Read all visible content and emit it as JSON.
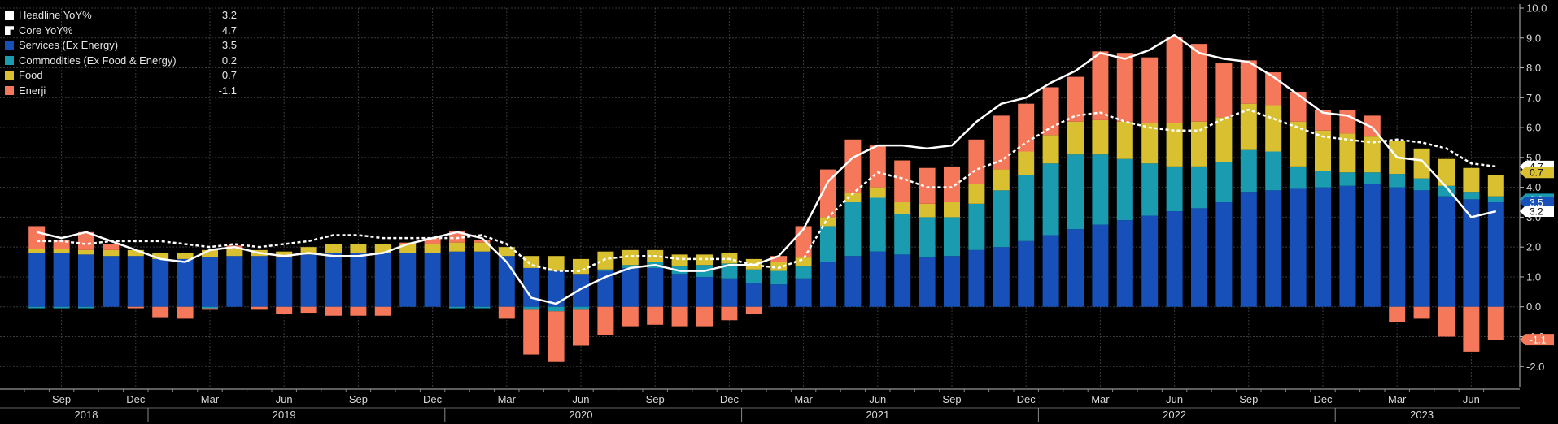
{
  "legend": [
    {
      "name": "Headline YoY%",
      "value": "3.2",
      "color": "#ffffff"
    },
    {
      "name": "Core YoY%",
      "value": "4.7",
      "color": "#ffffff"
    },
    {
      "name": "Services (Ex Energy)",
      "value": "3.5",
      "color": "#1650b8"
    },
    {
      "name": "Commodities (Ex Food & Energy)",
      "value": "0.2",
      "color": "#1b9bb0"
    },
    {
      "name": "Food",
      "value": "0.7",
      "color": "#d8c030"
    },
    {
      "name": "Enerji",
      "value": "-1.1",
      "color": "#f5785a"
    }
  ],
  "chart_data": {
    "type": "bar",
    "stacked": true,
    "x": [
      "2018-08",
      "2018-09",
      "2018-10",
      "2018-11",
      "2018-12",
      "2019-01",
      "2019-02",
      "2019-03",
      "2019-04",
      "2019-05",
      "2019-06",
      "2019-07",
      "2019-08",
      "2019-09",
      "2019-10",
      "2019-11",
      "2019-12",
      "2020-01",
      "2020-02",
      "2020-03",
      "2020-04",
      "2020-05",
      "2020-06",
      "2020-07",
      "2020-08",
      "2020-09",
      "2020-10",
      "2020-11",
      "2020-12",
      "2021-01",
      "2021-02",
      "2021-03",
      "2021-04",
      "2021-05",
      "2021-06",
      "2021-07",
      "2021-08",
      "2021-09",
      "2021-10",
      "2021-11",
      "2021-12",
      "2022-01",
      "2022-02",
      "2022-03",
      "2022-04",
      "2022-05",
      "2022-06",
      "2022-07",
      "2022-08",
      "2022-09",
      "2022-10",
      "2022-11",
      "2022-12",
      "2023-01",
      "2023-02",
      "2023-03",
      "2023-04",
      "2023-05",
      "2023-06",
      "2023-07"
    ],
    "series": [
      {
        "name": "Services (Ex Energy)",
        "color": "#1650b8",
        "values": [
          1.8,
          1.8,
          1.75,
          1.7,
          1.7,
          1.6,
          1.6,
          1.65,
          1.7,
          1.7,
          1.65,
          1.75,
          1.8,
          1.8,
          1.8,
          1.8,
          1.8,
          1.85,
          1.85,
          1.7,
          1.3,
          1.2,
          1.1,
          1.2,
          1.3,
          1.3,
          1.1,
          1.0,
          0.95,
          0.8,
          0.75,
          0.95,
          1.5,
          1.7,
          1.85,
          1.75,
          1.65,
          1.7,
          1.9,
          2.0,
          2.2,
          2.4,
          2.6,
          2.75,
          2.9,
          3.05,
          3.2,
          3.3,
          3.5,
          3.85,
          3.9,
          3.95,
          4.0,
          4.05,
          4.1,
          4.0,
          3.9,
          3.7,
          3.6,
          3.5
        ]
      },
      {
        "name": "Commodities (Ex Food & Energy)",
        "color": "#1b9bb0",
        "values": [
          -0.05,
          -0.05,
          -0.05,
          0.0,
          0.0,
          0.0,
          0.0,
          -0.05,
          0.0,
          0.0,
          0.0,
          0.0,
          0.0,
          0.0,
          0.0,
          0.0,
          0.0,
          -0.05,
          -0.05,
          0.0,
          -0.1,
          -0.15,
          -0.1,
          0.05,
          0.1,
          0.2,
          0.25,
          0.4,
          0.5,
          0.45,
          0.45,
          0.4,
          1.2,
          1.8,
          1.8,
          1.35,
          1.35,
          1.3,
          1.55,
          1.9,
          2.2,
          2.4,
          2.5,
          2.35,
          2.05,
          1.75,
          1.5,
          1.4,
          1.35,
          1.4,
          1.3,
          0.75,
          0.55,
          0.45,
          0.4,
          0.45,
          0.4,
          0.35,
          0.25,
          0.2
        ]
      },
      {
        "name": "Food",
        "color": "#d8c030",
        "values": [
          0.15,
          0.15,
          0.15,
          0.2,
          0.2,
          0.2,
          0.2,
          0.25,
          0.25,
          0.2,
          0.2,
          0.25,
          0.3,
          0.3,
          0.3,
          0.3,
          0.3,
          0.3,
          0.3,
          0.3,
          0.4,
          0.5,
          0.5,
          0.6,
          0.5,
          0.4,
          0.4,
          0.35,
          0.35,
          0.35,
          0.3,
          0.3,
          0.3,
          0.3,
          0.35,
          0.4,
          0.45,
          0.5,
          0.65,
          0.7,
          0.8,
          0.95,
          1.1,
          1.15,
          1.25,
          1.35,
          1.45,
          1.5,
          1.5,
          1.55,
          1.55,
          1.5,
          1.35,
          1.3,
          1.2,
          1.1,
          1.0,
          0.9,
          0.8,
          0.7
        ]
      },
      {
        "name": "Enerji",
        "color": "#f5785a",
        "values": [
          0.75,
          0.3,
          0.6,
          0.2,
          -0.05,
          -0.35,
          -0.4,
          -0.05,
          0.1,
          -0.1,
          -0.25,
          -0.2,
          -0.3,
          -0.3,
          -0.3,
          0.05,
          0.2,
          0.4,
          0.1,
          -0.4,
          -1.5,
          -1.7,
          -1.2,
          -0.95,
          -0.65,
          -0.6,
          -0.65,
          -0.65,
          -0.45,
          -0.25,
          0.2,
          1.05,
          1.6,
          1.8,
          1.4,
          1.4,
          1.2,
          1.2,
          1.5,
          1.8,
          1.6,
          1.6,
          1.5,
          2.3,
          2.3,
          2.2,
          2.9,
          2.6,
          1.8,
          1.45,
          1.1,
          1.0,
          0.7,
          0.8,
          0.7,
          -0.5,
          -0.4,
          -1.0,
          -1.5,
          -1.1
        ]
      }
    ],
    "lines": [
      {
        "name": "Headline YoY%",
        "style": "solid",
        "color": "#ffffff",
        "values": [
          2.5,
          2.3,
          2.5,
          2.2,
          1.9,
          1.6,
          1.5,
          1.9,
          2.0,
          1.8,
          1.7,
          1.8,
          1.7,
          1.7,
          1.8,
          2.1,
          2.3,
          2.5,
          2.3,
          1.5,
          0.3,
          0.1,
          0.6,
          1.0,
          1.3,
          1.4,
          1.2,
          1.2,
          1.4,
          1.4,
          1.7,
          2.6,
          4.2,
          5.0,
          5.4,
          5.4,
          5.3,
          5.4,
          6.2,
          6.8,
          7.0,
          7.5,
          7.9,
          8.5,
          8.3,
          8.6,
          9.1,
          8.5,
          8.3,
          8.2,
          7.7,
          7.1,
          6.5,
          6.4,
          6.0,
          5.0,
          4.9,
          4.0,
          3.0,
          3.2
        ]
      },
      {
        "name": "Core YoY%",
        "style": "dashed",
        "color": "#ffffff",
        "values": [
          2.2,
          2.2,
          2.1,
          2.2,
          2.2,
          2.2,
          2.1,
          2.0,
          2.1,
          2.0,
          2.1,
          2.2,
          2.4,
          2.4,
          2.3,
          2.3,
          2.3,
          2.3,
          2.4,
          2.1,
          1.4,
          1.2,
          1.2,
          1.6,
          1.7,
          1.7,
          1.6,
          1.6,
          1.6,
          1.4,
          1.3,
          1.6,
          3.0,
          3.8,
          4.5,
          4.3,
          4.0,
          4.0,
          4.6,
          4.9,
          5.5,
          6.0,
          6.4,
          6.5,
          6.2,
          6.0,
          5.9,
          5.9,
          6.3,
          6.6,
          6.3,
          6.0,
          5.7,
          5.6,
          5.5,
          5.6,
          5.5,
          5.3,
          4.8,
          4.7
        ]
      }
    ],
    "y_axis": {
      "side": "right",
      "range": [
        -2.7,
        10.0
      ],
      "ticks": [
        "10.0",
        "9.0",
        "8.0",
        "7.0",
        "6.0",
        "5.0",
        "4.0",
        "3.0",
        "2.0",
        "1.0",
        "0.0",
        "-1.0",
        "-2.0"
      ]
    },
    "x_axis": {
      "month_ticks": [
        {
          "label": "Sep",
          "at": "2018-09"
        },
        {
          "label": "Dec",
          "at": "2018-12"
        },
        {
          "label": "Mar",
          "at": "2019-03"
        },
        {
          "label": "Jun",
          "at": "2019-06"
        },
        {
          "label": "Sep",
          "at": "2019-09"
        },
        {
          "label": "Dec",
          "at": "2019-12"
        },
        {
          "label": "Mar",
          "at": "2020-03"
        },
        {
          "label": "Jun",
          "at": "2020-06"
        },
        {
          "label": "Sep",
          "at": "2020-09"
        },
        {
          "label": "Dec",
          "at": "2020-12"
        },
        {
          "label": "Mar",
          "at": "2021-03"
        },
        {
          "label": "Jun",
          "at": "2021-06"
        },
        {
          "label": "Sep",
          "at": "2021-09"
        },
        {
          "label": "Dec",
          "at": "2021-12"
        },
        {
          "label": "Mar",
          "at": "2022-03"
        },
        {
          "label": "Jun",
          "at": "2022-06"
        },
        {
          "label": "Sep",
          "at": "2022-09"
        },
        {
          "label": "Dec",
          "at": "2022-12"
        },
        {
          "label": "Mar",
          "at": "2023-03"
        },
        {
          "label": "Jun",
          "at": "2023-06"
        }
      ],
      "year_labels": [
        {
          "label": "2018",
          "at": "2018-10"
        },
        {
          "label": "2019",
          "at": "2019-06"
        },
        {
          "label": "2020",
          "at": "2020-06"
        },
        {
          "label": "2021",
          "at": "2021-06"
        },
        {
          "label": "2022",
          "at": "2022-06"
        },
        {
          "label": "2023",
          "at": "2023-04"
        }
      ],
      "year_starts": [
        "2019-01",
        "2020-01",
        "2021-01",
        "2022-01",
        "2023-01"
      ]
    },
    "end_markers": [
      {
        "label": "4.7",
        "value": 4.7,
        "color": "#ffffff"
      },
      {
        "label": "0.7",
        "value": 4.5,
        "color": "#d8c030"
      },
      {
        "label": "0.2",
        "value": 3.6,
        "color": "#1b9bb0"
      },
      {
        "label": "3.5",
        "value": 3.5,
        "color": "#1650b8"
      },
      {
        "label": "3.2",
        "value": 3.2,
        "color": "#ffffff"
      },
      {
        "label": "-1.1",
        "value": -1.1,
        "color": "#f5785a"
      }
    ],
    "grid": true,
    "legend_position": "top-left"
  }
}
